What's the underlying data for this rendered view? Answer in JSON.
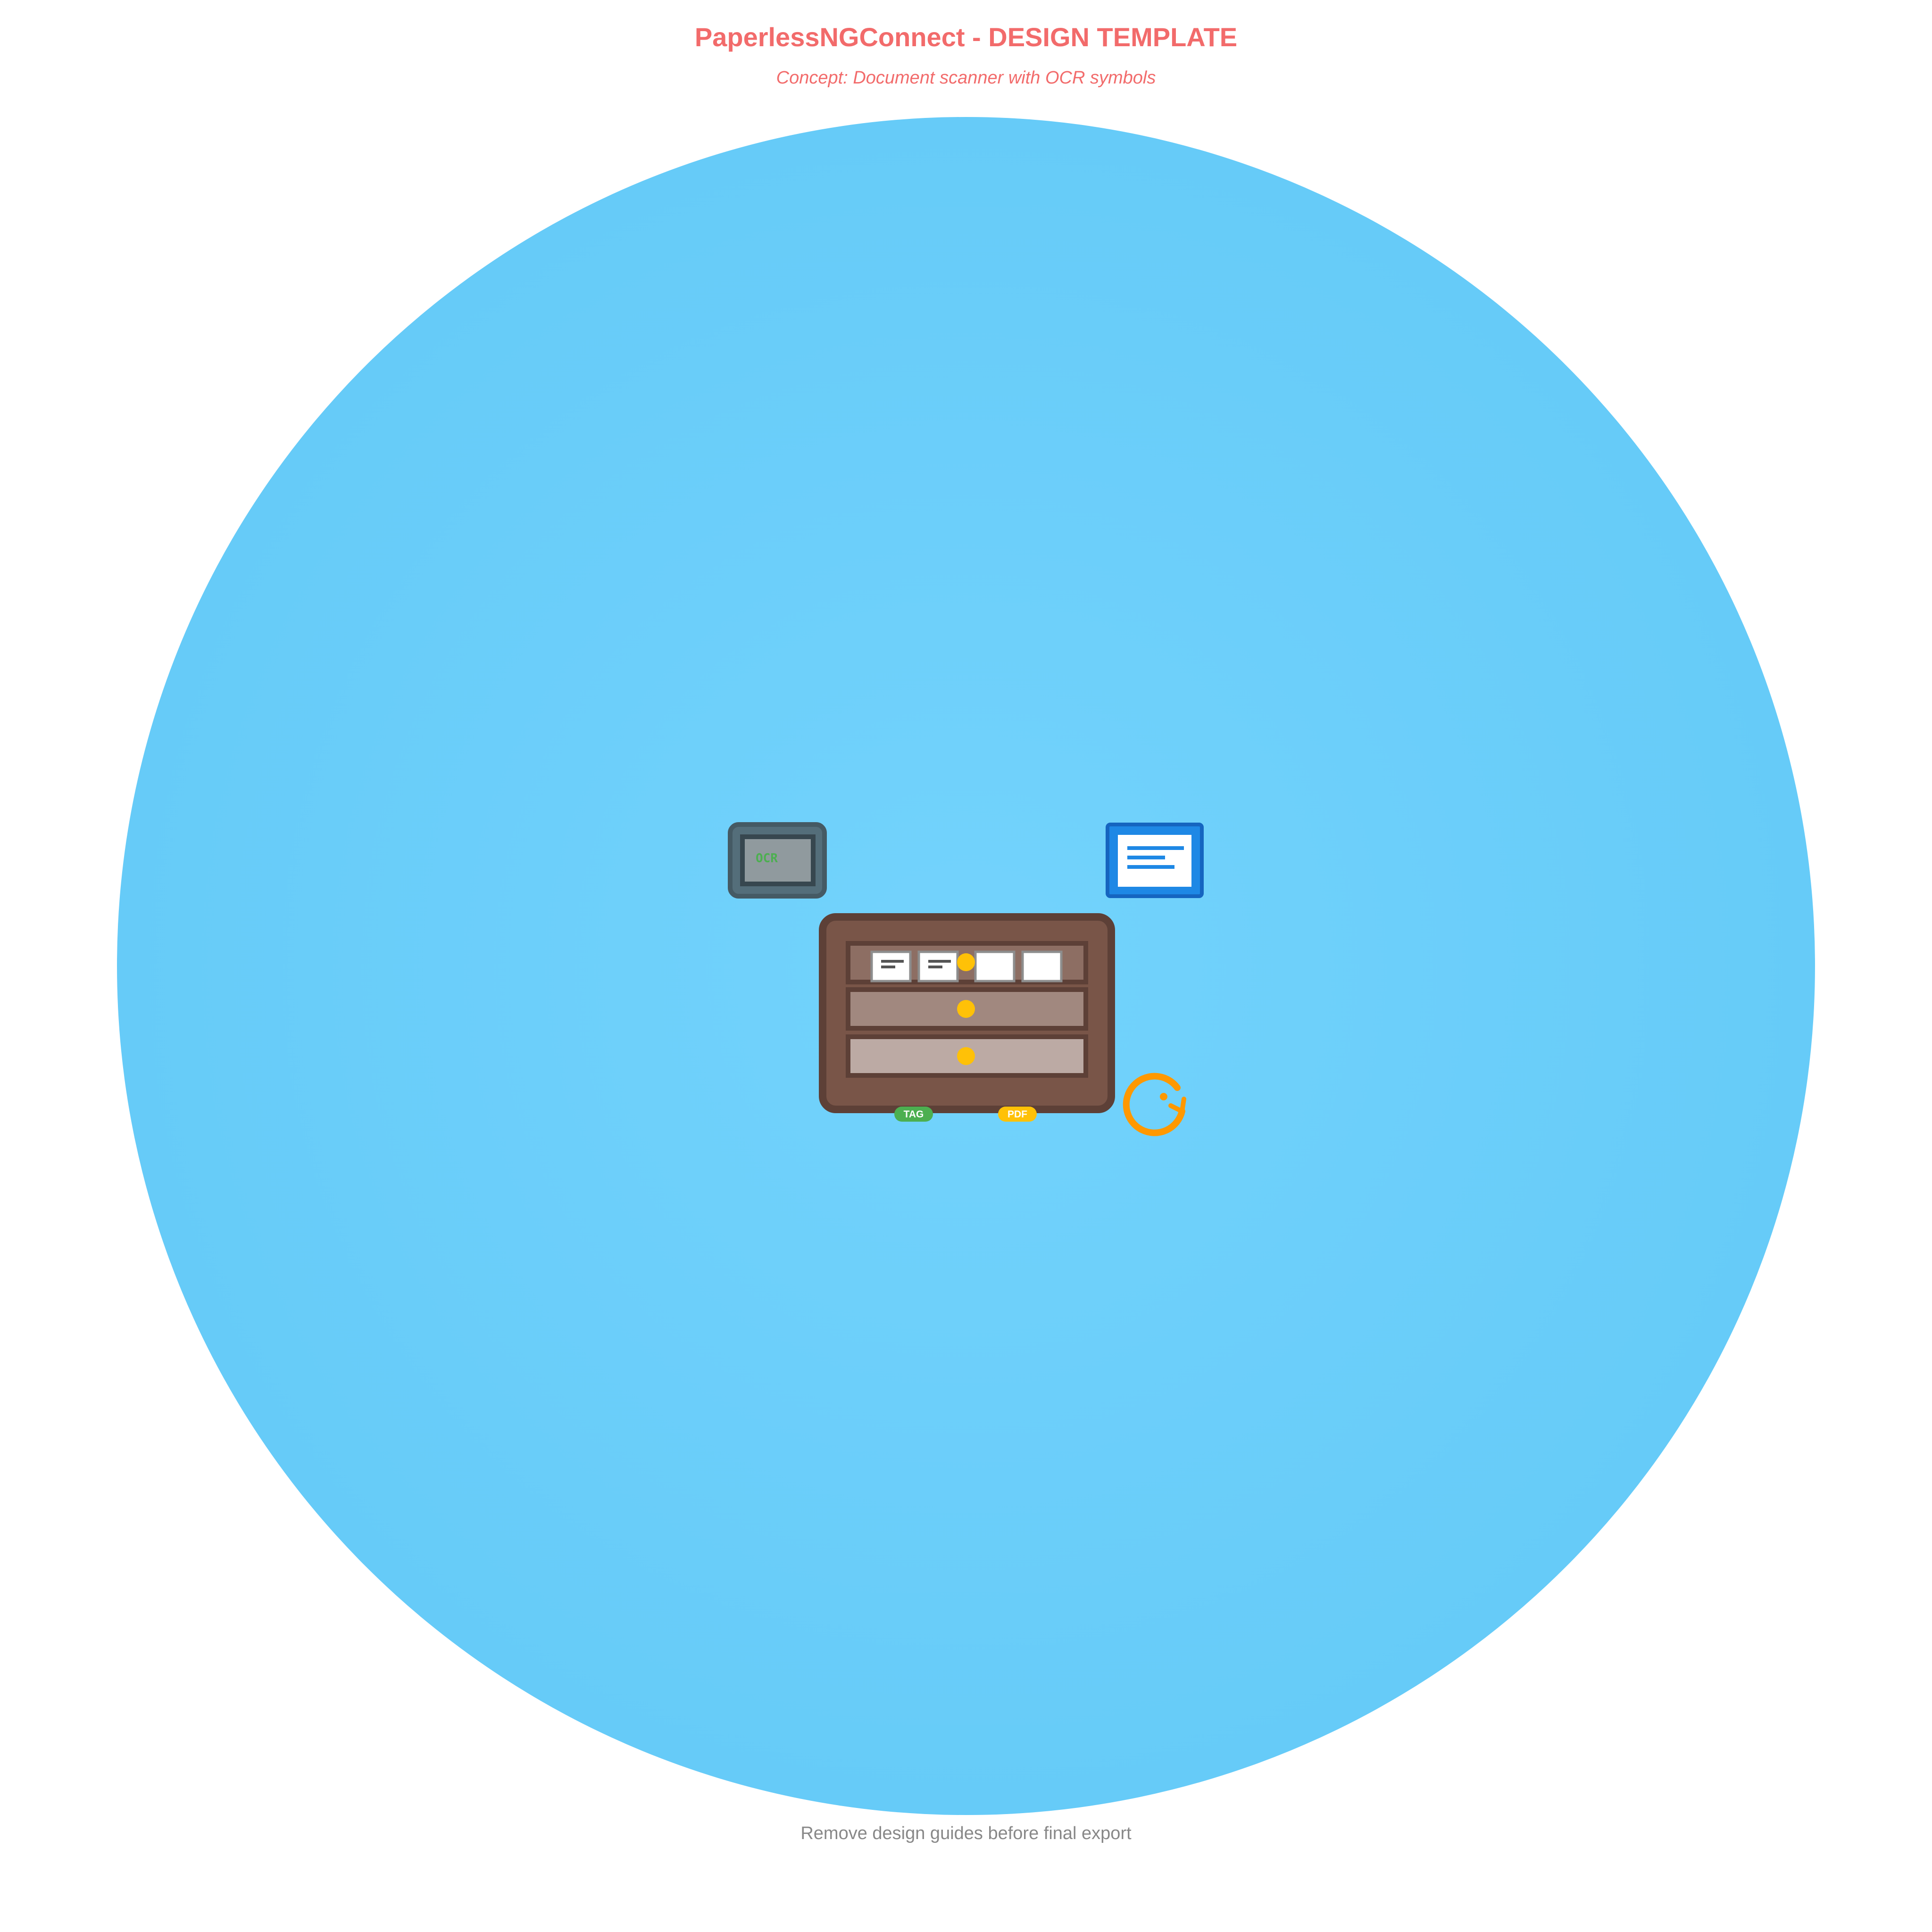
{
  "header": {
    "title": "PaperlessNGConnect - DESIGN TEMPLATE",
    "subtitle": "Concept: Document scanner with OCR symbols"
  },
  "footer": {
    "note": "Remove design guides before final export"
  },
  "icon": {
    "ocr_label": "OCR",
    "tag_label": "TAG",
    "pdf_label": "PDF",
    "icons": [
      "ocr-scanner-icon",
      "document-icon",
      "filing-cabinet-icon",
      "refresh-icon",
      "tag-badge",
      "pdf-badge"
    ]
  },
  "colors": {
    "title": "#f26b6b",
    "subtitle": "#f26b6b",
    "footer": "#888888",
    "background_circle": "#6fcffa",
    "cabinet": "#795548",
    "cabinet_dark": "#5d4037",
    "drawer_1": "#8d6e63",
    "drawer_2": "#a1887f",
    "drawer_3": "#bcaaa4",
    "knob": "#ffc107",
    "ocr_body": "#546e7a",
    "ocr_screen": "#90a4ae",
    "ocr_text": "#4caf50",
    "doc_blue": "#1e88e5",
    "refresh": "#ff9800",
    "tag": "#4caf50",
    "pdf": "#ffc107"
  }
}
